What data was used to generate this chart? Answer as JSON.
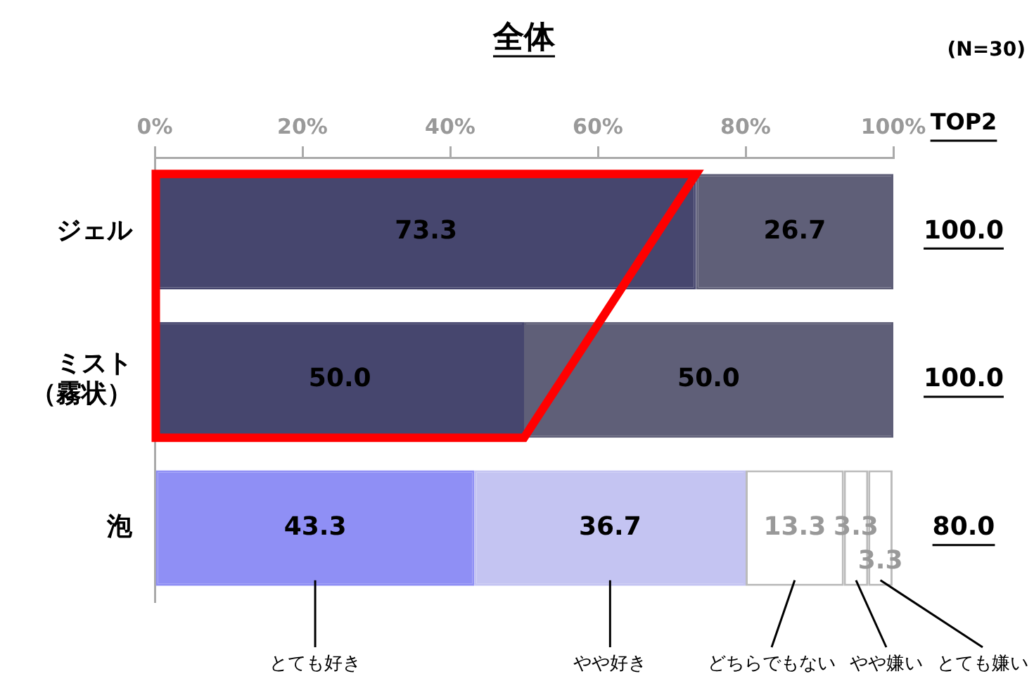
{
  "chart_data": {
    "type": "bar",
    "title": "全体",
    "orientation": "horizontal",
    "stacked": true,
    "categories": [
      "ジェル",
      "ミスト（霧状）",
      "泡"
    ],
    "series": [
      {
        "name": "とても好き",
        "colors": [
          "#46466e",
          "#46466e",
          "#8f8ff5"
        ],
        "values": [
          73.3,
          50.0,
          43.3
        ],
        "value_labels": [
          "73.3",
          "50.0",
          "43.3"
        ]
      },
      {
        "name": "やや好き",
        "colors": [
          "#5f5f78",
          "#5f5f78",
          "#c4c4f2"
        ],
        "values": [
          26.7,
          50.0,
          36.7
        ],
        "value_labels": [
          "26.7",
          "50.0",
          "36.7"
        ]
      },
      {
        "name": "どちらでもない",
        "color": "#ffffff",
        "values": [
          0,
          0,
          13.3
        ],
        "value_labels": [
          null,
          null,
          "13.3"
        ]
      },
      {
        "name": "やや嫌い",
        "color": "#ffffff",
        "values": [
          0,
          0,
          3.3
        ],
        "value_labels": [
          null,
          null,
          "3.3"
        ]
      },
      {
        "name": "とても嫌い",
        "color": "#ffffff",
        "values": [
          0,
          0,
          3.3
        ],
        "value_labels": [
          null,
          null,
          "3.3"
        ]
      }
    ],
    "xlim": [
      0,
      100
    ],
    "xticks": [
      {
        "value": 0,
        "label": "0%"
      },
      {
        "value": 20,
        "label": "20%"
      },
      {
        "value": 40,
        "label": "40%"
      },
      {
        "value": 60,
        "label": "60%"
      },
      {
        "value": 80,
        "label": "80%"
      },
      {
        "value": 100,
        "label": "100%"
      }
    ],
    "annotations": [
      "(N=30)",
      "TOP2",
      "100.0",
      "100.0",
      "80.0"
    ],
    "grid": false,
    "legend": "bottom"
  }
}
